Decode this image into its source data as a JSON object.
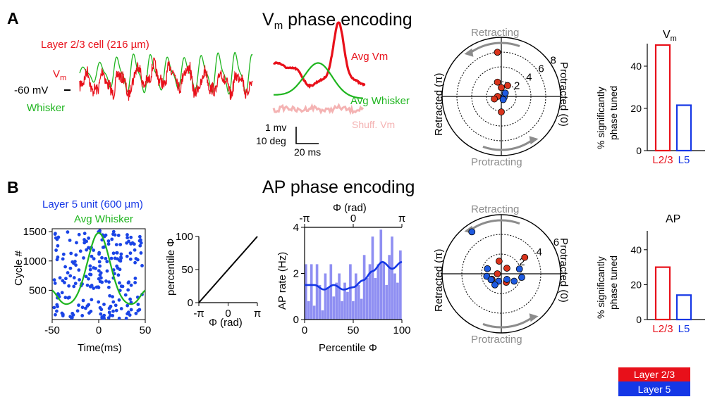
{
  "colors": {
    "l23": "#e8101a",
    "l5": "#1537e6",
    "whisker": "#1fb51f",
    "shuffled": "#f4b3b3",
    "gray": "#8c8c8c",
    "histogram": "#8f8ff2",
    "raster": "#1a44e6",
    "dot_red": "#d9341c",
    "dot_blue": "#1e5ae0"
  },
  "panel_a": {
    "letter": "A",
    "section_title": "V",
    "section_title_sub": "m",
    "section_title_rest": " phase encoding",
    "cell_label": "Layer 2/3 cell (216 µm)",
    "vm_label": "V",
    "vm_label_sub": "m",
    "mv_label": "-60 mV",
    "whisker_label": "Whisker",
    "avg_vm_label": "Avg Vm",
    "avg_whisker_label": "Avg Whisker",
    "shuff_label": "Shuff. Vm",
    "scale_mv": "1 mv",
    "scale_deg": "10 deg",
    "scale_ms": "20 ms",
    "polar": {
      "top_label": "Retracting",
      "bottom_label": "Protracting",
      "left_label": "Retracted (π)",
      "right_label": "Protracted (0)",
      "ring_labels": [
        "2",
        "4",
        "6",
        "8"
      ]
    },
    "bar_chart": {
      "title": "V",
      "title_sub": "m",
      "ylabel_line1": "% significantly",
      "ylabel_line2": "phase tuned",
      "yticks": [
        "0",
        "20",
        "40"
      ],
      "categories": [
        "L2/3",
        "L5"
      ]
    }
  },
  "panel_b": {
    "letter": "B",
    "section_title": "AP phase encoding",
    "unit_label": "Layer 5 unit (600 µm)",
    "avg_whisker_label": "Avg Whisker",
    "raster": {
      "ylabel": "Cycle #",
      "xlabel": "Time(ms)",
      "yticks": [
        "500",
        "1000",
        "1500"
      ],
      "xticks": [
        "-50",
        "0",
        "50"
      ]
    },
    "percentile": {
      "ylabel": "percentile Φ",
      "xlabel": "Φ (rad)",
      "yticks": [
        "0",
        "50",
        "100"
      ],
      "xticks": [
        "-π",
        "0",
        "π"
      ]
    },
    "histogram": {
      "top_label": "Φ (rad)",
      "top_ticks": [
        "-π",
        "0",
        "π"
      ],
      "ylabel": "AP rate (Hz)",
      "xlabel": "Percentile Φ",
      "yticks": [
        "0",
        "2",
        "4"
      ],
      "xticks": [
        "0",
        "50",
        "100"
      ]
    },
    "polar": {
      "top_label": "Retracting",
      "bottom_label": "Protracting",
      "left_label": "Retracted (π)",
      "right_label": "Protracted (0)",
      "ring_labels": [
        "2",
        "4",
        "6"
      ]
    },
    "bar_chart": {
      "title": "AP",
      "ylabel_line1": "% significantly",
      "ylabel_line2": "phase tuned",
      "yticks": [
        "0",
        "20",
        "40"
      ],
      "categories": [
        "L2/3",
        "L5"
      ]
    }
  },
  "legend": {
    "l23": "Layer 2/3",
    "l5": "Layer 5"
  },
  "chart_data": [
    {
      "type": "bar",
      "title": "Vm",
      "ylabel": "% significantly phase tuned",
      "categories": [
        "L2/3",
        "L5"
      ],
      "values": [
        50,
        21.5
      ],
      "ylim": [
        0,
        50
      ]
    },
    {
      "type": "bar",
      "title": "AP",
      "ylabel": "% significantly phase tuned",
      "categories": [
        "L2/3",
        "L5"
      ],
      "values": [
        30,
        14
      ],
      "ylim": [
        0,
        50
      ]
    },
    {
      "type": "scatter",
      "ylabel": "Cycle #",
      "xlabel": "Time(ms)",
      "xlim": [
        -50,
        50
      ],
      "ylim": [
        0,
        1550
      ],
      "series": [
        {
          "name": "Layer 5 unit (600 µm)",
          "description": "spike raster"
        },
        {
          "name": "Avg Whisker",
          "x": [
            -50,
            -40,
            -30,
            -20,
            -10,
            0,
            10,
            20,
            30,
            40,
            50
          ],
          "y": [
            500,
            230,
            280,
            700,
            1200,
            1480,
            1230,
            650,
            220,
            250,
            500
          ]
        }
      ]
    },
    {
      "type": "line",
      "ylabel": "percentile Φ",
      "xlabel": "Φ (rad)",
      "xlim": [
        "-π",
        "π"
      ],
      "ylim": [
        0,
        100
      ],
      "x": [
        -3.14,
        -1.57,
        0,
        1.57,
        3.14
      ],
      "y": [
        0,
        25,
        50,
        75,
        100
      ]
    },
    {
      "type": "bar",
      "ylabel": "AP rate (Hz)",
      "xlabel": "Percentile Φ",
      "xlim": [
        0,
        100
      ],
      "ylim": [
        0,
        4
      ],
      "values": [
        2.4,
        0.8,
        2.4,
        0.6,
        2.4,
        1.5,
        0.4,
        2.0,
        1.4,
        2.4,
        1.0,
        1.6,
        2.0,
        0.8,
        1.6,
        1.2,
        2.4,
        0.8,
        2.0,
        1.5,
        0.9,
        2.8,
        1.8,
        2.4,
        3.6,
        1.8,
        2.4,
        3.9,
        2.5,
        1.5,
        2.8,
        3.6,
        2.0,
        1.6,
        3.0
      ],
      "series": [
        {
          "name": "smoothed",
          "x": [
            0,
            10,
            20,
            30,
            40,
            50,
            60,
            70,
            80,
            90,
            100
          ],
          "y": [
            1.5,
            1.5,
            1.3,
            1.5,
            1.3,
            1.4,
            1.7,
            2.1,
            2.5,
            2.2,
            2.5
          ]
        }
      ]
    },
    {
      "type": "scatter",
      "title": "Vm polar",
      "series": [
        {
          "name": "Layer 2/3",
          "points": [
            [
              95,
              6.0
            ],
            [
              90,
              1.2
            ],
            [
              180,
              0.5
            ],
            [
              200,
              1.0
            ],
            [
              -90,
              2.1
            ],
            [
              60,
              1.7
            ],
            [
              105,
              2.0
            ]
          ]
        },
        {
          "name": "Layer 5",
          "points": [
            [
              -20,
              0.4
            ],
            [
              40,
              0.7
            ],
            [
              -60,
              0.5
            ]
          ]
        }
      ]
    },
    {
      "type": "scatter",
      "title": "AP polar",
      "series": [
        {
          "name": "Layer 2/3",
          "points": [
            [
              35,
              2.9
            ],
            [
              100,
              1.3
            ],
            [
              180,
              0.4
            ],
            [
              210,
              1.1
            ],
            [
              45,
              0.8
            ],
            [
              -60,
              1.0
            ]
          ]
        },
        {
          "name": "Layer 5",
          "points": [
            [
              125,
              5.2
            ],
            [
              190,
              1.5
            ],
            [
              -30,
              1.5
            ],
            [
              -110,
              0.8
            ],
            [
              -150,
              1.2
            ],
            [
              15,
              1.9
            ],
            [
              -10,
              2.1
            ],
            [
              240,
              1.3
            ],
            [
              -45,
              0.8
            ],
            [
              160,
              1.5
            ]
          ]
        }
      ]
    }
  ]
}
